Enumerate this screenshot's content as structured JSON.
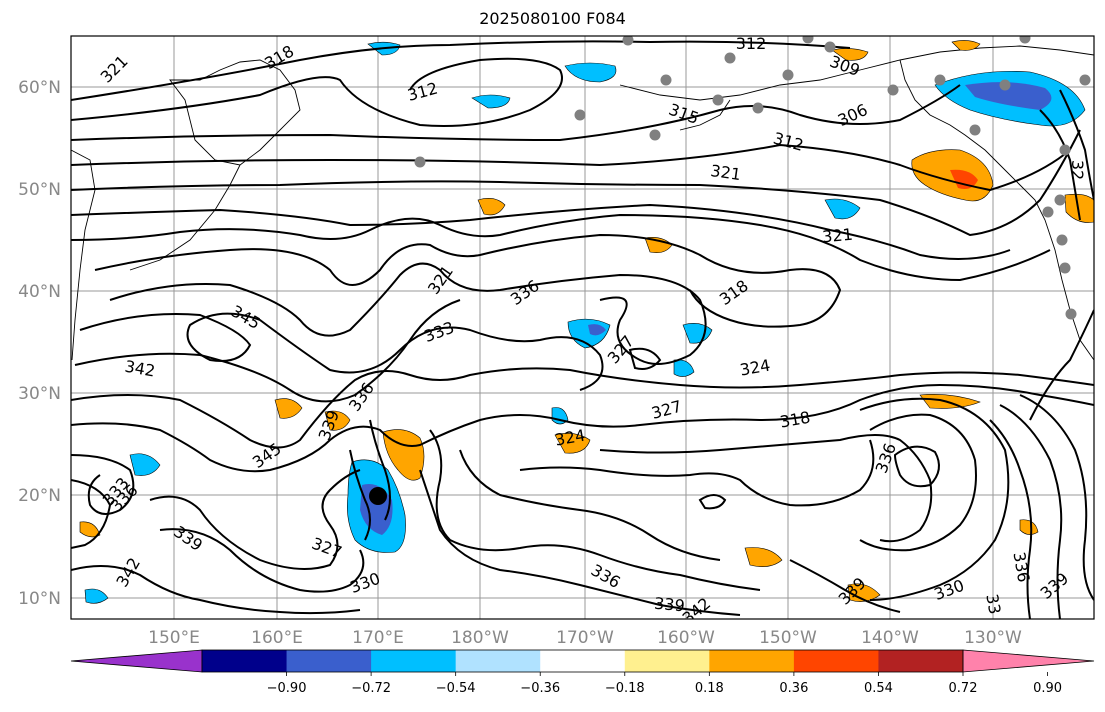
{
  "title": "2025080100 F084",
  "map": {
    "lat_labels": [
      "60°N",
      "50°N",
      "40°N",
      "30°N",
      "20°N",
      "10°N"
    ],
    "lon_labels": [
      "150°E",
      "160°E",
      "170°E",
      "180°W",
      "170°W",
      "160°W",
      "150°W",
      "140°W",
      "130°W"
    ],
    "contour_labels": [
      {
        "text": "321",
        "rot": -45
      },
      {
        "text": "318",
        "rot": -30
      },
      {
        "text": "312",
        "rot": -15
      },
      {
        "text": "312",
        "rot": 0
      },
      {
        "text": "309",
        "rot": 20
      },
      {
        "text": "315",
        "rot": 20
      },
      {
        "text": "306",
        "rot": -25
      },
      {
        "text": "312",
        "rot": 15
      },
      {
        "text": "321",
        "rot": 8
      },
      {
        "text": "321",
        "rot": -5
      },
      {
        "text": "321",
        "rot": -55
      },
      {
        "text": "336",
        "rot": -35
      },
      {
        "text": "333",
        "rot": -20
      },
      {
        "text": "318",
        "rot": -35
      },
      {
        "text": "345",
        "rot": 30
      },
      {
        "text": "342",
        "rot": 10
      },
      {
        "text": "327",
        "rot": -50
      },
      {
        "text": "324",
        "rot": -10
      },
      {
        "text": "336",
        "rot": -55
      },
      {
        "text": "339",
        "rot": -70
      },
      {
        "text": "327",
        "rot": -15
      },
      {
        "text": "318",
        "rot": -10
      },
      {
        "text": "345",
        "rot": -35
      },
      {
        "text": "324",
        "rot": -10
      },
      {
        "text": "336",
        "rot": -70
      },
      {
        "text": "333",
        "rot": -50
      },
      {
        "text": "336",
        "rot": -45
      },
      {
        "text": "339",
        "rot": 35
      },
      {
        "text": "327",
        "rot": 20
      },
      {
        "text": "330",
        "rot": -20
      },
      {
        "text": "336",
        "rot": 30
      },
      {
        "text": "339",
        "rot": 5
      },
      {
        "text": "342",
        "rot": -60
      },
      {
        "text": "342",
        "rot": -40
      },
      {
        "text": "339",
        "rot": -45
      },
      {
        "text": "330",
        "rot": -20
      },
      {
        "text": "336",
        "rot": 80
      },
      {
        "text": "33",
        "rot": 80
      },
      {
        "text": "339",
        "rot": -40
      },
      {
        "text": "32",
        "rot": 90
      }
    ]
  },
  "colorbar": {
    "tick_labels": [
      "−0.90",
      "−0.72",
      "−0.54",
      "−0.36",
      "−0.18",
      "0.18",
      "0.36",
      "0.54",
      "0.72",
      "0.90"
    ],
    "colors": [
      "#9932cc",
      "#00008b",
      "#3a5fcd",
      "#00bfff",
      "#b0e2ff",
      "#ffffff",
      "#fff08f",
      "#ffa500",
      "#ff4500",
      "#b22222",
      "#ff82ab"
    ]
  }
}
